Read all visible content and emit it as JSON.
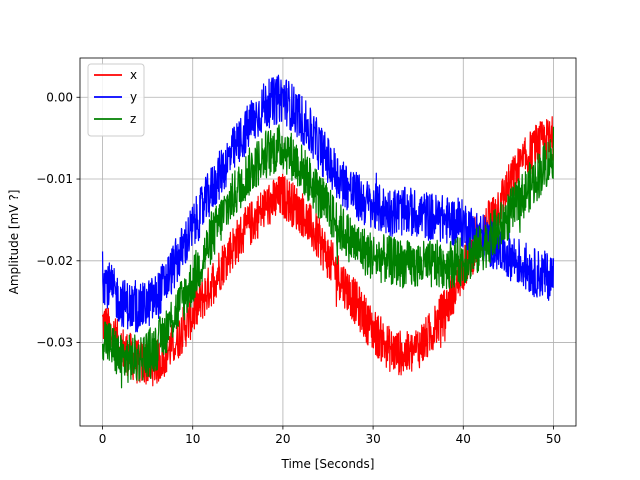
{
  "chart_data": {
    "type": "line",
    "title": "",
    "xlabel": "Time [Seconds]",
    "ylabel": "Amplitude [mV ?]",
    "xlim": [
      -2.5,
      52.5
    ],
    "ylim": [
      -0.0402,
      0.0048
    ],
    "xticks": [
      0,
      10,
      20,
      30,
      40,
      50
    ],
    "xtick_labels": [
      "0",
      "10",
      "20",
      "30",
      "40",
      "50"
    ],
    "yticks": [
      -0.03,
      -0.02,
      -0.01,
      0.0
    ],
    "ytick_labels": [
      "−0.03",
      "−0.02",
      "−0.01",
      "0.00"
    ],
    "grid": true,
    "legend_position": "top-left",
    "series": [
      {
        "name": "x",
        "color": "#ff0000",
        "noise_band": 0.0028,
        "x": [
          0,
          2,
          4,
          6,
          8,
          10,
          12,
          14,
          16,
          18,
          20,
          22,
          24,
          26,
          28,
          30,
          32,
          34,
          36,
          38,
          40,
          42,
          44,
          46,
          48,
          50
        ],
        "y": [
          -0.0275,
          -0.0305,
          -0.0325,
          -0.0325,
          -0.03,
          -0.0265,
          -0.023,
          -0.019,
          -0.016,
          -0.0135,
          -0.012,
          -0.014,
          -0.0175,
          -0.0215,
          -0.025,
          -0.0285,
          -0.031,
          -0.0315,
          -0.0295,
          -0.026,
          -0.021,
          -0.017,
          -0.013,
          -0.009,
          -0.006,
          -0.005
        ]
      },
      {
        "name": "y",
        "color": "#0000ff",
        "noise_band": 0.003,
        "x": [
          0,
          2,
          4,
          6,
          8,
          10,
          12,
          14,
          16,
          18,
          20,
          22,
          24,
          26,
          28,
          30,
          32,
          34,
          36,
          38,
          40,
          42,
          44,
          46,
          48,
          50
        ],
        "y": [
          -0.022,
          -0.025,
          -0.026,
          -0.0245,
          -0.0205,
          -0.016,
          -0.0115,
          -0.0075,
          -0.004,
          -0.001,
          0.0,
          -0.0025,
          -0.006,
          -0.0095,
          -0.012,
          -0.0135,
          -0.014,
          -0.014,
          -0.0145,
          -0.015,
          -0.0155,
          -0.017,
          -0.0185,
          -0.02,
          -0.0215,
          -0.022
        ]
      },
      {
        "name": "z",
        "color": "#008000",
        "noise_band": 0.003,
        "x": [
          0,
          2,
          4,
          6,
          8,
          10,
          12,
          14,
          16,
          18,
          20,
          22,
          24,
          26,
          28,
          30,
          32,
          34,
          36,
          38,
          40,
          42,
          44,
          46,
          48,
          50
        ],
        "y": [
          -0.029,
          -0.032,
          -0.032,
          -0.0305,
          -0.0265,
          -0.0225,
          -0.0175,
          -0.013,
          -0.0095,
          -0.007,
          -0.006,
          -0.0085,
          -0.012,
          -0.0155,
          -0.018,
          -0.0195,
          -0.02,
          -0.0205,
          -0.0205,
          -0.0205,
          -0.02,
          -0.0185,
          -0.016,
          -0.013,
          -0.01,
          -0.007
        ]
      }
    ]
  }
}
